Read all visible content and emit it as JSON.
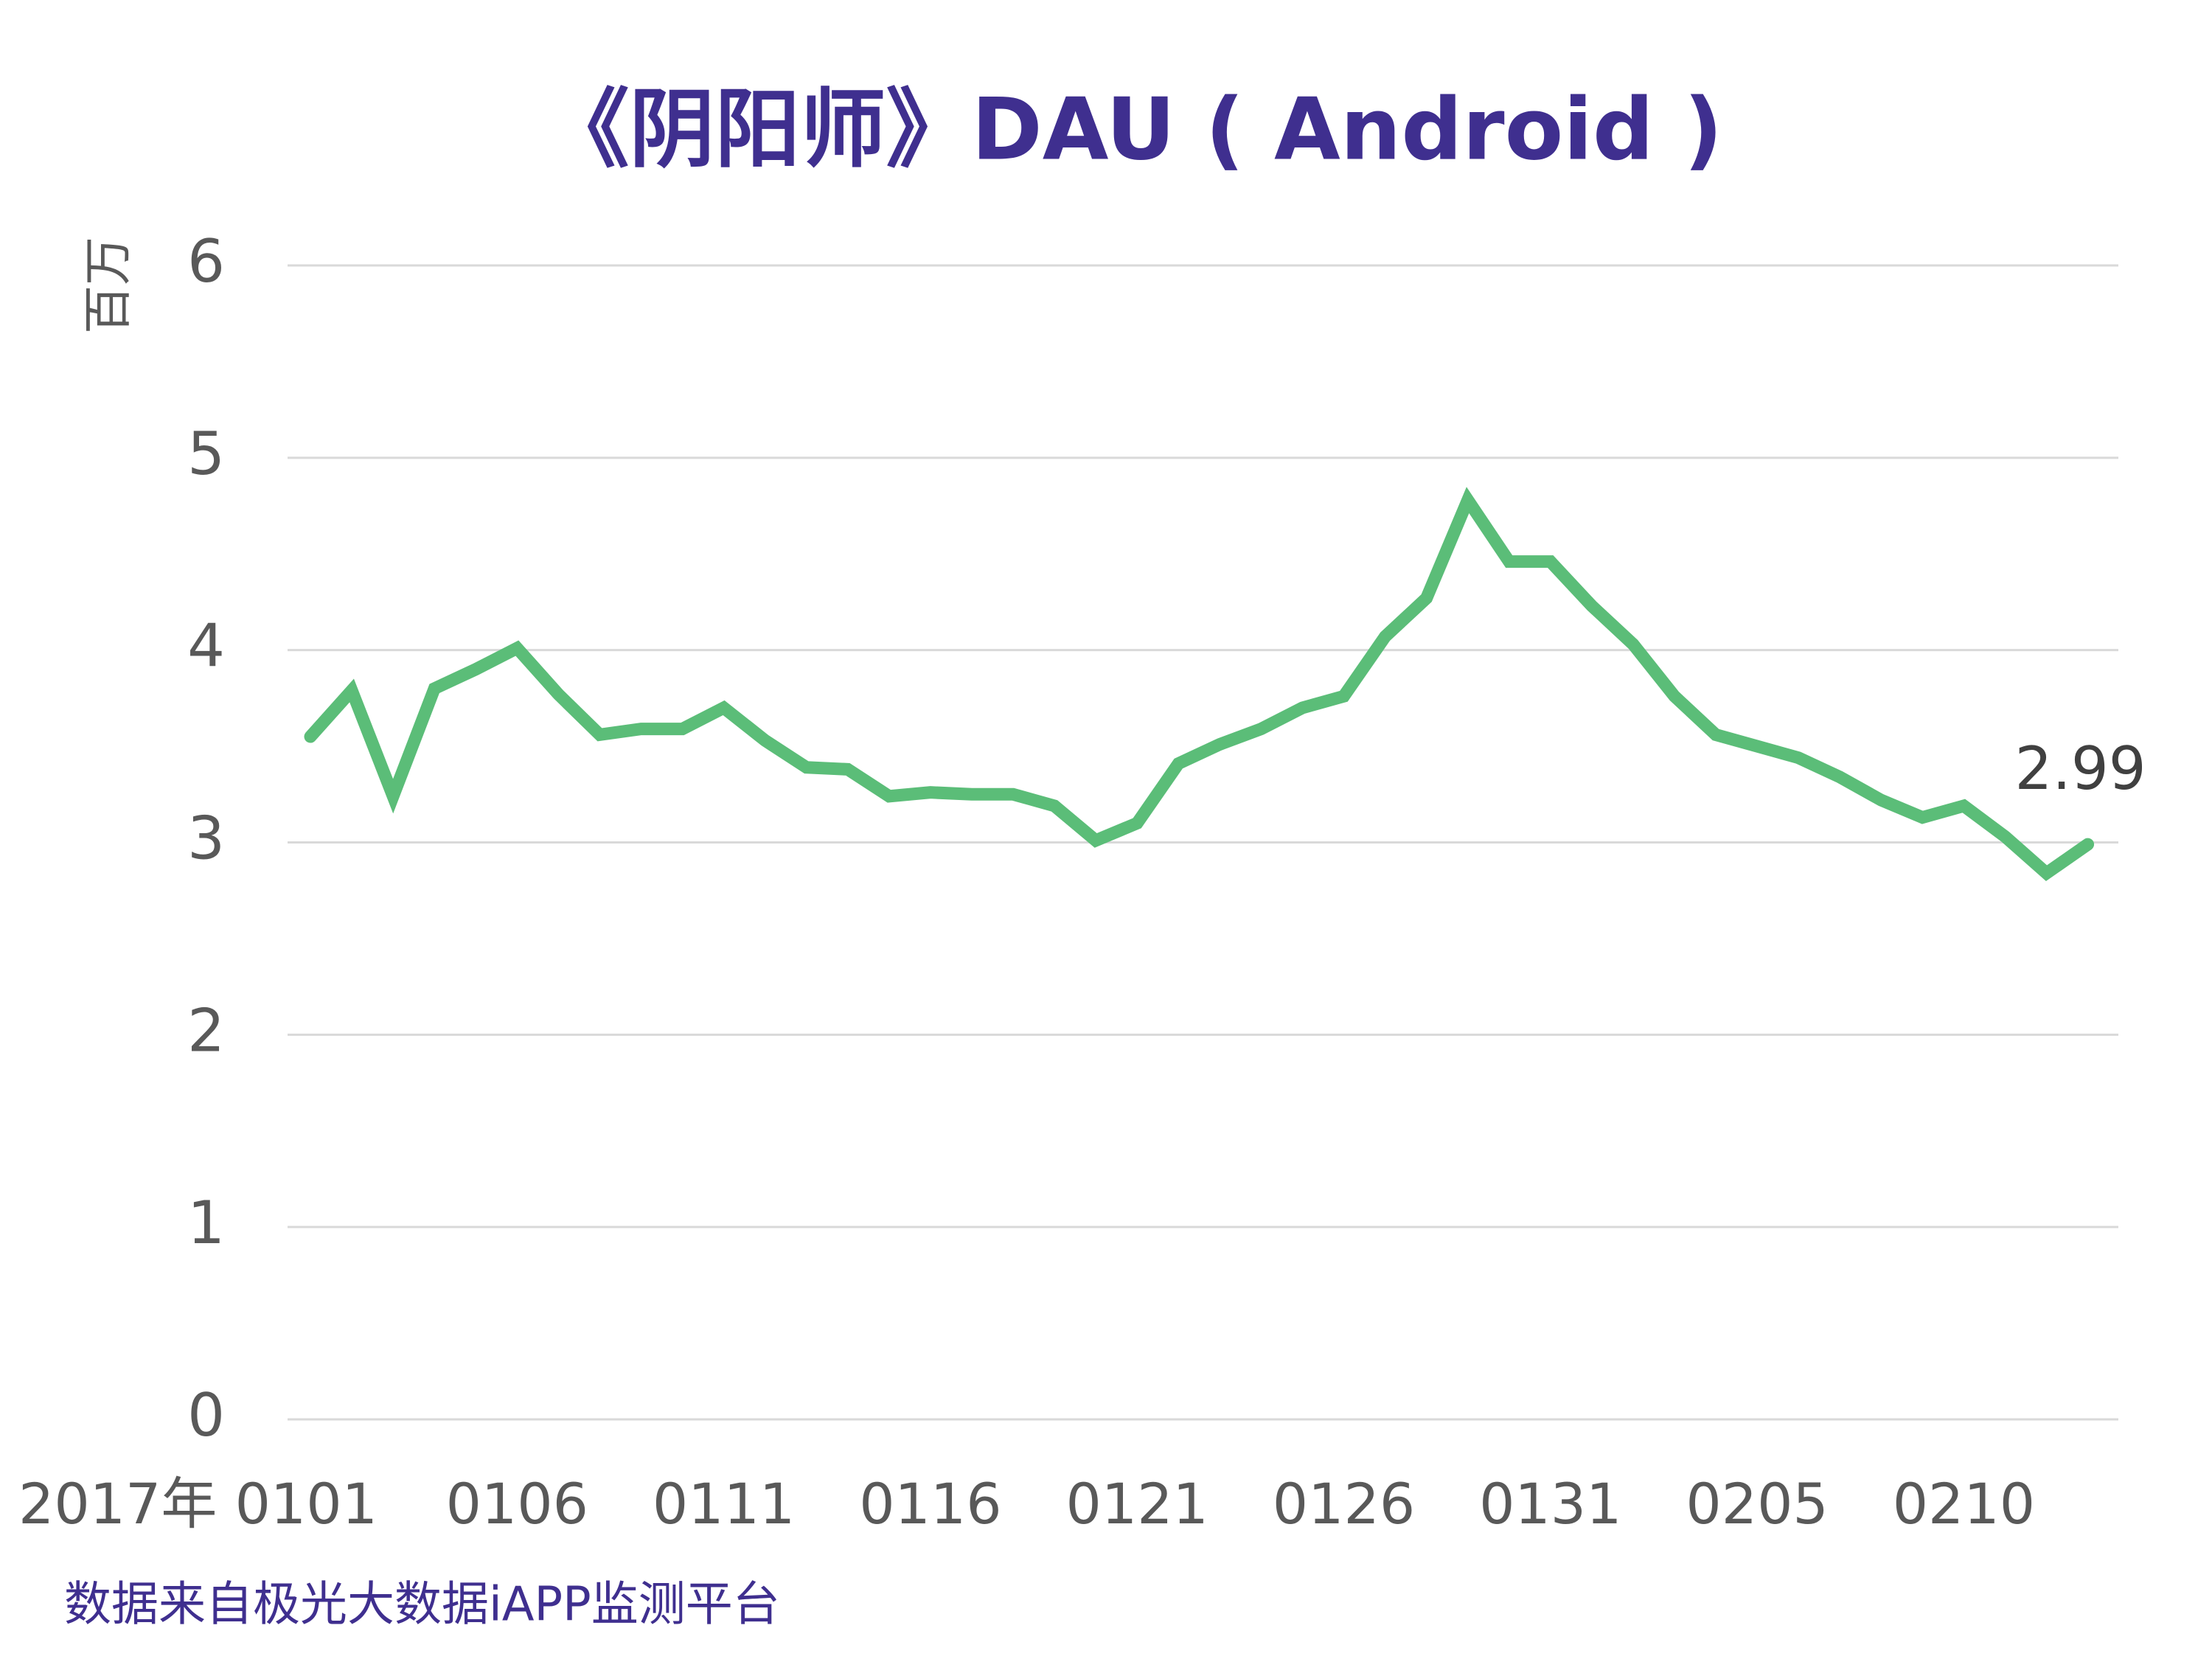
{
  "chart_data": {
    "type": "line",
    "title": "《阴阳师》DAU ( Android )",
    "y_label": "百万",
    "source": "数据来自极光大数据iAPP监测平台",
    "categories": [
      "2017年 0101",
      null,
      null,
      null,
      null,
      "0106",
      null,
      null,
      null,
      null,
      "0111",
      null,
      null,
      null,
      null,
      "0116",
      null,
      null,
      null,
      null,
      "0121",
      null,
      null,
      null,
      null,
      "0126",
      null,
      null,
      null,
      null,
      "0131",
      null,
      null,
      null,
      null,
      "0205",
      null,
      null,
      null,
      null,
      "0210",
      null,
      null,
      null
    ],
    "series": [
      {
        "color": "#5bbd78",
        "values": [
          3.55,
          3.79,
          3.24,
          3.8,
          3.9,
          4.01,
          3.77,
          3.56,
          3.59,
          3.59,
          3.7,
          3.53,
          3.39,
          3.38,
          3.24,
          3.26,
          3.25,
          3.25,
          3.19,
          3.01,
          3.1,
          3.41,
          3.51,
          3.59,
          3.7,
          3.76,
          4.07,
          4.27,
          4.78,
          4.46,
          4.46,
          4.23,
          4.03,
          3.76,
          3.56,
          3.5,
          3.44,
          3.34,
          3.22,
          3.13,
          3.19,
          3.03,
          2.84,
          2.99
        ]
      }
    ],
    "ylim": [
      0,
      6
    ],
    "yticks": [
      0,
      1,
      2,
      3,
      4,
      5,
      6
    ],
    "grid": true
  }
}
